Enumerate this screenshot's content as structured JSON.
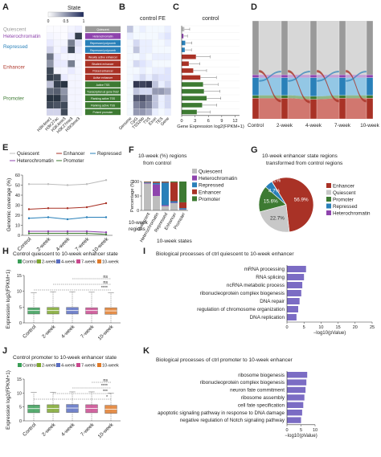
{
  "panels": {
    "A": {
      "letter": "A",
      "legend_title": "State",
      "scale_ticks": [
        "0",
        "0.5",
        "1"
      ],
      "groups": [
        "Quiescent",
        "Heterochromatin",
        "Repressed",
        "Enhancer",
        "Promoter"
      ],
      "group_colors": [
        "#9a9a9a",
        "#8e44ad",
        "#2980b9",
        "#b03a2e",
        "#3d7a32"
      ],
      "marks": [
        "H3K4me1",
        "H3K27ac",
        "H3K4me3",
        "H3K27me3",
        "H3K9me3"
      ]
    },
    "B": {
      "letter": "B",
      "title": "control FE",
      "features": [
        "Genome",
        "CpG",
        "TSS2kb",
        "TSS",
        "Exon",
        "TES",
        "Gene"
      ]
    },
    "C": {
      "letter": "C",
      "title": "control",
      "xlabel": "Gene Expression log2(FPKM+1)",
      "ticks": [
        "0",
        "3",
        "6",
        "9",
        "12"
      ]
    },
    "D": {
      "letter": "D"
    },
    "E": {
      "letter": "E",
      "ylabel": "Genomic coverage (%)"
    },
    "F": {
      "letter": "F",
      "title_line1": "10-week (%) regions",
      "title_line2": "from control",
      "ylabel": "Percentage (%)",
      "row_label1": "10-week",
      "row_label2": "regions",
      "xlabel": "10-week states"
    },
    "G": {
      "letter": "G",
      "title_line1": "10-week enhancer state regions",
      "title_line2": "transformed from control regions"
    },
    "H": {
      "letter": "H",
      "title": "Control quiescent to 10-week enhancer state",
      "ylabel": "Expression log2(FPKM+1)"
    },
    "I": {
      "letter": "I",
      "title": "Biological processes of ctrl quiescent to 10-week enhancer",
      "xlabel": "−log10(pValue)"
    },
    "J": {
      "letter": "J",
      "title": "Control promoter to 10-week enhancer state",
      "ylabel": "Expression log2(FPKM+1)"
    },
    "K": {
      "letter": "K",
      "title": "Biological processes of ctrl promoter to 10-week enhancer",
      "xlabel": "−log10(pValue)"
    }
  },
  "chart_data": [
    {
      "panel": "A",
      "type": "heatmap",
      "states": [
        "Quiescent",
        "Heterochromatin",
        "Repressed polycomb",
        "Repressed polycomb",
        "Weakly active enhancer",
        "Bivalent enhancer",
        "Poised enhancer",
        "Active enhancer",
        "Active TSS",
        "Transcription at gene 5'&3'",
        "Flanking active TSS",
        "Flanking active TSS",
        "Poised promoter"
      ],
      "state_group": [
        "Quiescent",
        "Heterochromatin",
        "Repressed",
        "Repressed",
        "Enhancer",
        "Enhancer",
        "Enhancer",
        "Enhancer",
        "Promoter",
        "Promoter",
        "Promoter",
        "Promoter",
        "Promoter"
      ],
      "columns": [
        "H3K4me1",
        "H3K27ac",
        "H3K4me3",
        "H3K27me3",
        "H3K9me3"
      ],
      "values": [
        [
          0.02,
          0.02,
          0.02,
          0.05,
          0.08
        ],
        [
          0.05,
          0.03,
          0.02,
          0.1,
          0.9
        ],
        [
          0.1,
          0.05,
          0.05,
          0.6,
          0.15
        ],
        [
          0.2,
          0.05,
          0.1,
          0.85,
          0.1
        ],
        [
          0.65,
          0.1,
          0.05,
          0.05,
          0.05
        ],
        [
          0.5,
          0.1,
          0.1,
          0.6,
          0.05
        ],
        [
          0.85,
          0.05,
          0.05,
          0.1,
          0.05
        ],
        [
          0.9,
          0.85,
          0.1,
          0.05,
          0.05
        ],
        [
          0.3,
          0.9,
          0.95,
          0.05,
          0.05
        ],
        [
          0.7,
          0.75,
          0.5,
          0.05,
          0.05
        ],
        [
          0.95,
          0.95,
          0.6,
          0.05,
          0.05
        ],
        [
          0.85,
          0.8,
          0.85,
          0.05,
          0.05
        ],
        [
          0.2,
          0.2,
          0.85,
          0.05,
          0.05
        ]
      ]
    },
    {
      "panel": "B",
      "type": "heatmap",
      "columns": [
        "Genome",
        "CpG",
        "TSS2kb",
        "TSS",
        "Exon",
        "TES",
        "Gene"
      ],
      "values": [
        [
          0.3,
          0.05,
          0.1,
          0.05,
          0.05,
          0.05,
          0.1
        ],
        [
          0.1,
          0.05,
          0.05,
          0.05,
          0.05,
          0.1,
          0.15
        ],
        [
          0.05,
          0.2,
          0.1,
          0.1,
          0.05,
          0.05,
          0.1
        ],
        [
          0.05,
          0.3,
          0.1,
          0.1,
          0.05,
          0.05,
          0.05
        ],
        [
          0.05,
          0.05,
          0.1,
          0.05,
          0.1,
          0.1,
          0.1
        ],
        [
          0.05,
          0.2,
          0.15,
          0.1,
          0.05,
          0.05,
          0.05
        ],
        [
          0.05,
          0.05,
          0.1,
          0.05,
          0.1,
          0.1,
          0.15
        ],
        [
          0.05,
          0.1,
          0.2,
          0.1,
          0.2,
          0.15,
          0.15
        ],
        [
          0.05,
          0.95,
          0.9,
          0.95,
          0.3,
          0.1,
          0.2
        ],
        [
          0.05,
          0.3,
          0.2,
          0.2,
          0.5,
          0.5,
          0.4
        ],
        [
          0.05,
          0.8,
          0.85,
          0.7,
          0.3,
          0.1,
          0.2
        ],
        [
          0.05,
          0.6,
          0.7,
          0.6,
          0.3,
          0.1,
          0.2
        ],
        [
          0.05,
          0.5,
          0.5,
          0.4,
          0.1,
          0.05,
          0.1
        ]
      ]
    },
    {
      "panel": "C",
      "type": "bar",
      "orientation": "horizontal",
      "values": [
        0.6,
        0.4,
        0.8,
        0.7,
        3.2,
        1.6,
        2.6,
        4.2,
        4.8,
        5.0,
        5.6,
        4.6,
        3.4
      ],
      "errors": [
        1.2,
        0.9,
        1.5,
        1.5,
        3.2,
        2.5,
        3.0,
        3.6,
        3.4,
        3.6,
        3.2,
        3.3,
        3.0
      ],
      "xlim": [
        0,
        13
      ]
    },
    {
      "panel": "D",
      "type": "area",
      "subtype": "alluvial",
      "categories": [
        "Control",
        "2-week",
        "4-week",
        "7-week",
        "10-week"
      ],
      "series": [
        {
          "name": "Quiescent",
          "values": [
            55,
            55,
            55,
            55,
            55
          ]
        },
        {
          "name": "Heterochromatin",
          "values": [
            3,
            3,
            3,
            3,
            3
          ]
        },
        {
          "name": "Repressed",
          "values": [
            18,
            18,
            19,
            18,
            18
          ]
        },
        {
          "name": "Promoter",
          "values": [
            3,
            3,
            3,
            3,
            3
          ]
        },
        {
          "name": "Enhancer",
          "values": [
            21,
            21,
            20,
            21,
            21
          ]
        }
      ]
    },
    {
      "panel": "E",
      "type": "line",
      "categories": [
        "Control",
        "2-week",
        "4-week",
        "7-week",
        "10-week"
      ],
      "series": [
        {
          "name": "Quiescent",
          "values": [
            51,
            51,
            50,
            51,
            55
          ]
        },
        {
          "name": "Enhancer",
          "values": [
            26,
            27,
            27,
            28,
            32
          ]
        },
        {
          "name": "Repressed",
          "values": [
            17,
            18,
            16,
            18,
            18
          ]
        },
        {
          "name": "Heterochromatin",
          "values": [
            4,
            4,
            4,
            4,
            3
          ]
        },
        {
          "name": "Promoter",
          "values": [
            2,
            2,
            2,
            2,
            1
          ]
        }
      ],
      "ylim": [
        0,
        60
      ],
      "yticks": [
        0,
        10,
        20,
        30,
        40,
        50,
        60
      ]
    },
    {
      "panel": "F",
      "type": "bar",
      "stacked": true,
      "categories": [
        "Quiescent",
        "Heterochromatin",
        "Repressed",
        "Enhancer",
        "Promoter"
      ],
      "series": [
        {
          "name": "Quiescent",
          "values": [
            93,
            50,
            15,
            25,
            3
          ]
        },
        {
          "name": "Heterochromatin",
          "values": [
            2,
            40,
            3,
            2,
            1
          ]
        },
        {
          "name": "Repressed",
          "values": [
            2,
            5,
            78,
            5,
            4
          ]
        },
        {
          "name": "Enhancer",
          "values": [
            2,
            4,
            3,
            65,
            20
          ]
        },
        {
          "name": "Promoter",
          "values": [
            1,
            1,
            1,
            3,
            72
          ]
        }
      ],
      "ylim": [
        0,
        100
      ],
      "yticks": [
        0,
        50,
        100
      ]
    },
    {
      "panel": "G",
      "type": "pie",
      "labels": [
        "Enhancer",
        "Quiescent",
        "Promoter",
        "Repressed",
        "Heterochromatin"
      ],
      "values": [
        56.9,
        22.7,
        15.6,
        4.7,
        0.1
      ],
      "value_labels": [
        "56.9%",
        "22.7%",
        "15.6%",
        "4.7%",
        "0.1%"
      ]
    },
    {
      "panel": "H",
      "type": "bar",
      "subtype": "boxplot",
      "categories": [
        "Control",
        "2-week",
        "4-week",
        "7-week",
        "10-week"
      ],
      "medians": [
        3.9,
        3.9,
        3.9,
        3.9,
        3.8
      ],
      "q1": [
        2.8,
        2.8,
        2.8,
        2.8,
        2.7
      ],
      "q3": [
        4.8,
        4.9,
        4.9,
        4.8,
        4.8
      ],
      "whisker_low": [
        0,
        0,
        0,
        0,
        0
      ],
      "whisker_high": [
        9.6,
        9.8,
        9.8,
        9.7,
        9.6
      ],
      "ylim": [
        0,
        15
      ],
      "yticks": [
        0,
        5,
        10,
        15
      ],
      "significance": [
        {
          "from": "Control",
          "to": "10-week",
          "label": "****"
        },
        {
          "from": "2-week",
          "to": "10-week",
          "label": "ns"
        },
        {
          "from": "4-week",
          "to": "10-week",
          "label": "ns"
        }
      ]
    },
    {
      "panel": "I",
      "type": "bar",
      "orientation": "horizontal",
      "categories": [
        "mRNA processing",
        "RNA splicing",
        "ncRNA metabolic process",
        "ribonucleoprotein complex biogenesis",
        "DNA repair",
        "regulation of chromosome organization",
        "DNA replication"
      ],
      "values": [
        5.6,
        5.0,
        4.5,
        4.2,
        3.7,
        3.3,
        2.8
      ],
      "xlim": [
        0,
        25
      ],
      "xticks": [
        0,
        5,
        10,
        15,
        20,
        25
      ]
    },
    {
      "panel": "J",
      "type": "bar",
      "subtype": "boxplot",
      "categories": [
        "Control",
        "2-week",
        "4-week",
        "7-week",
        "10-week"
      ],
      "medians": [
        4.4,
        4.5,
        4.6,
        4.5,
        4.2
      ],
      "q1": [
        2.9,
        3.0,
        3.0,
        2.9,
        2.7
      ],
      "q3": [
        5.7,
        5.8,
        5.9,
        5.8,
        5.6
      ],
      "whisker_low": [
        0,
        0,
        0,
        0,
        0
      ],
      "whisker_high": [
        10.2,
        10.3,
        10.4,
        10.4,
        10.0
      ],
      "ylim": [
        0,
        15
      ],
      "yticks": [
        0,
        5,
        10,
        15
      ],
      "significance": [
        {
          "from": "Control",
          "to": "10-week",
          "label": "*"
        },
        {
          "from": "2-week",
          "to": "10-week",
          "label": "***"
        },
        {
          "from": "4-week",
          "to": "10-week",
          "label": "****"
        },
        {
          "from": "7-week",
          "to": "10-week",
          "label": "ns"
        }
      ]
    },
    {
      "panel": "K",
      "type": "bar",
      "orientation": "horizontal",
      "categories": [
        "ribosome biogenesis",
        "ribonucleoprotein complex biogenesis",
        "neuron fate commitment",
        "ribosome assembly",
        "cell fate specification",
        "apoptotic signaling pathway in response to DNA damage",
        "negative regulation of Notch signaling pathway"
      ],
      "values": [
        7.2,
        6.9,
        6.6,
        6.2,
        5.8,
        5.4,
        5.0
      ],
      "xlim": [
        0,
        10
      ],
      "xticks": [
        0,
        5,
        10
      ]
    }
  ]
}
